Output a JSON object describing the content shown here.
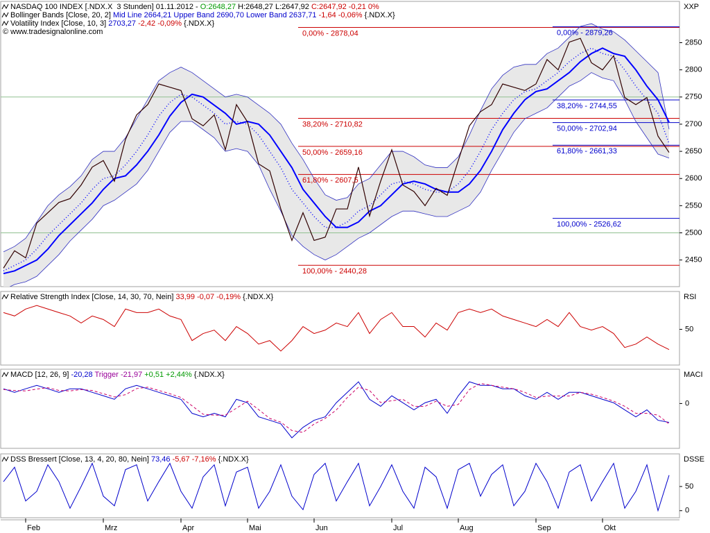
{
  "chart_data": [
    {
      "type": "bollinger",
      "header": [
        [
          {
            "text": "NASDAQ 100 INDEX [.NDX.X  3 Stunden] 01.11.2012 - ",
            "color": "#000000"
          },
          {
            "text": "O:2648,27",
            "color": "#009900"
          },
          {
            "text": " H:2648,27 L:2647,92 ",
            "color": "#000000"
          },
          {
            "text": "C:2647,92 -0,21 0%",
            "color": "#cc0000"
          }
        ],
        [
          {
            "text": "Bollinger Bands [Close, 20, 2] ",
            "color": "#000000"
          },
          {
            "text": "Mid Line 2664,21 Upper Band 2690,70 Lower Band 2637,71 ",
            "color": "#0000cc"
          },
          {
            "text": "-1,64 -0,06% ",
            "color": "#cc0000"
          },
          {
            "text": "{.NDX.X}",
            "color": "#000000"
          }
        ],
        [
          {
            "text": "Volatility Index [Close, 10, 3] ",
            "color": "#000000"
          },
          {
            "text": "2703,27 ",
            "color": "#0000cc"
          },
          {
            "text": "-2,42 -0,09% ",
            "color": "#cc0000"
          },
          {
            "text": "{.NDX.X}",
            "color": "#000000"
          }
        ]
      ],
      "copyright": "© www.tradesignalonline.com",
      "axis_label": "XXP",
      "ylim": [
        2401,
        2926
      ],
      "yticks": [
        2450,
        2500,
        2550,
        2600,
        2650,
        2700,
        2750,
        2800,
        2850
      ],
      "hlines": {
        "color": "#90c090",
        "values": [
          2500,
          2750
        ]
      },
      "band_fill": "#e8e8e8",
      "close": {
        "color": "#300000",
        "values": [
          2435,
          2467,
          2454,
          2518,
          2537,
          2556,
          2563,
          2588,
          2621,
          2633,
          2595,
          2672,
          2717,
          2736,
          2774,
          2768,
          2762,
          2710,
          2697,
          2717,
          2653,
          2736,
          2704,
          2627,
          2614,
          2544,
          2486,
          2537,
          2486,
          2492,
          2544,
          2544,
          2621,
          2531,
          2595,
          2653,
          2588,
          2576,
          2550,
          2582,
          2569,
          2633,
          2697,
          2723,
          2736,
          2774,
          2768,
          2762,
          2774,
          2819,
          2800,
          2851,
          2858,
          2813,
          2800,
          2826,
          2749,
          2736,
          2749,
          2678,
          2647.92
        ]
      },
      "mid": {
        "color": "#0000ff",
        "values": [
          2430,
          2440,
          2450,
          2470,
          2495,
          2515,
          2535,
          2555,
          2580,
          2600,
          2605,
          2625,
          2650,
          2680,
          2715,
          2740,
          2755,
          2750,
          2735,
          2720,
          2700,
          2705,
          2700,
          2680,
          2650,
          2620,
          2580,
          2555,
          2530,
          2510,
          2510,
          2520,
          2540,
          2550,
          2570,
          2590,
          2595,
          2590,
          2580,
          2575,
          2575,
          2590,
          2615,
          2650,
          2690,
          2720,
          2745,
          2760,
          2765,
          2780,
          2795,
          2815,
          2830,
          2840,
          2830,
          2825,
          2800,
          2770,
          2745,
          2720,
          2664.21
        ]
      },
      "upper": {
        "color": "#3030c0",
        "values": [
          2465,
          2475,
          2490,
          2520,
          2550,
          2570,
          2585,
          2605,
          2635,
          2650,
          2650,
          2675,
          2710,
          2745,
          2780,
          2795,
          2805,
          2795,
          2780,
          2765,
          2750,
          2755,
          2750,
          2735,
          2720,
          2700,
          2665,
          2635,
          2600,
          2570,
          2560,
          2565,
          2590,
          2600,
          2625,
          2650,
          2650,
          2640,
          2625,
          2620,
          2620,
          2640,
          2680,
          2725,
          2765,
          2790,
          2805,
          2810,
          2810,
          2830,
          2840,
          2860,
          2880,
          2885,
          2875,
          2870,
          2855,
          2835,
          2815,
          2795,
          2690.7
        ]
      },
      "lower": {
        "color": "#3030c0",
        "values": [
          2395,
          2405,
          2410,
          2420,
          2440,
          2460,
          2485,
          2505,
          2525,
          2550,
          2560,
          2575,
          2590,
          2615,
          2650,
          2685,
          2705,
          2705,
          2690,
          2675,
          2650,
          2655,
          2650,
          2625,
          2580,
          2540,
          2495,
          2475,
          2460,
          2450,
          2460,
          2475,
          2490,
          2500,
          2515,
          2530,
          2540,
          2540,
          2535,
          2530,
          2530,
          2540,
          2550,
          2575,
          2615,
          2650,
          2685,
          2710,
          2720,
          2730,
          2750,
          2770,
          2780,
          2795,
          2785,
          2780,
          2745,
          2705,
          2675,
          2645,
          2637.71
        ]
      },
      "volatility": {
        "color": "#0000ff",
        "values": [
          2425,
          2430,
          2440,
          2450,
          2470,
          2495,
          2515,
          2535,
          2555,
          2580,
          2600,
          2605,
          2625,
          2650,
          2680,
          2715,
          2740,
          2755,
          2750,
          2735,
          2720,
          2700,
          2705,
          2700,
          2680,
          2650,
          2620,
          2580,
          2555,
          2530,
          2510,
          2510,
          2520,
          2540,
          2550,
          2570,
          2590,
          2595,
          2590,
          2580,
          2575,
          2575,
          2590,
          2615,
          2650,
          2690,
          2720,
          2745,
          2760,
          2765,
          2780,
          2795,
          2815,
          2830,
          2840,
          2830,
          2825,
          2800,
          2770,
          2745,
          2703.27
        ]
      },
      "fib_sets": [
        {
          "color": "#cc0000",
          "levels": [
            {
              "label": "0,00% - 2878,04",
              "value": 2878.04
            },
            {
              "label": "38,20% - 2710,82",
              "value": 2710.82
            },
            {
              "label": "50,00% - 2659,16",
              "value": 2659.16
            },
            {
              "label": "61,80% - 2607,5",
              "value": 2607.5
            },
            {
              "label": "100,00% - 2440,28",
              "value": 2440.28
            }
          ]
        },
        {
          "color": "#0000cc",
          "levels": [
            {
              "label": "0,00% - 2879,26",
              "value": 2879.26
            },
            {
              "label": "38,20% - 2744,55",
              "value": 2744.55
            },
            {
              "label": "50,00% - 2702,94",
              "value": 2702.94
            },
            {
              "label": "61,80% - 2661,33",
              "value": 2661.33
            },
            {
              "label": "100,00% - 2526,62",
              "value": 2526.62
            }
          ]
        }
      ]
    },
    {
      "type": "line",
      "header": [
        [
          {
            "text": "Relative Strength Index [Close, 14, 30, 70, Nein] ",
            "color": "#000000"
          },
          {
            "text": "33,99 -0,07 -0,19% ",
            "color": "#cc0000"
          },
          {
            "text": "{.NDX.X}",
            "color": "#000000"
          }
        ]
      ],
      "axis_label": "RSI",
      "ylim": [
        21.7,
        80
      ],
      "yticks": [
        50
      ],
      "series": [
        {
          "color": "#cc0000",
          "values": [
            63.3,
            60.6,
            66.1,
            68.9,
            66.1,
            63.3,
            60.6,
            55.0,
            60.6,
            57.8,
            52.2,
            66.1,
            63.3,
            63.3,
            66.1,
            60.6,
            57.8,
            41.1,
            46.7,
            49.4,
            41.1,
            52.2,
            46.7,
            38.3,
            41.1,
            32.8,
            41.1,
            52.2,
            46.7,
            49.4,
            55.0,
            52.2,
            63.3,
            46.7,
            57.8,
            63.3,
            52.2,
            52.2,
            43.9,
            55.0,
            49.4,
            63.3,
            66.1,
            63.3,
            66.1,
            60.6,
            57.8,
            55.0,
            52.2,
            57.8,
            52.2,
            63.3,
            52.2,
            49.4,
            52.2,
            46.7,
            35.6,
            38.3,
            43.9,
            38.3,
            33.99
          ]
        }
      ]
    },
    {
      "type": "line",
      "header": [
        [
          {
            "text": "MACD [12, 26, 9] ",
            "color": "#000000"
          },
          {
            "text": "-20,28 ",
            "color": "#0000cc"
          },
          {
            "text": "Trigger -21,97 ",
            "color": "#990099"
          },
          {
            "text": "+0,51 +2,44% ",
            "color": "#009900"
          },
          {
            "text": "{.NDX.X}",
            "color": "#000000"
          }
        ]
      ],
      "axis_label": "MACI",
      "ylim": [
        -48.1,
        36.8
      ],
      "yticks": [
        0
      ],
      "series": [
        {
          "color": "#0000cc",
          "values": [
            15.8,
            12.0,
            15.8,
            19.5,
            15.8,
            12.0,
            15.8,
            15.8,
            12.0,
            8.3,
            4.5,
            15.8,
            19.5,
            15.8,
            12.0,
            8.3,
            4.5,
            -10.5,
            -14.3,
            -10.5,
            -14.3,
            4.5,
            0.8,
            -14.3,
            -18.0,
            -21.8,
            -36.8,
            -25.6,
            -18.0,
            -14.3,
            0.8,
            12.0,
            23.3,
            4.5,
            -3.0,
            8.3,
            0.8,
            -6.8,
            0.8,
            4.5,
            -10.5,
            8.3,
            23.3,
            19.5,
            19.5,
            15.8,
            15.8,
            8.3,
            4.5,
            12.0,
            4.5,
            12.0,
            12.0,
            8.3,
            4.5,
            0.8,
            -6.8,
            -14.3,
            -6.8,
            -18.0,
            -20.28
          ]
        },
        {
          "color": "#cc0066",
          "dashed": true,
          "values": [
            15.0,
            14.0,
            13.5,
            15.5,
            17.0,
            14.0,
            13.5,
            15.0,
            14.0,
            10.5,
            7.0,
            9.5,
            16.0,
            17.5,
            14.0,
            10.5,
            6.5,
            -2.5,
            -11.5,
            -12.5,
            -12.5,
            -5.0,
            2.5,
            -6.5,
            -16.0,
            -20.0,
            -29.0,
            -31.0,
            -22.0,
            -16.0,
            -7.0,
            6.5,
            17.5,
            14.0,
            1.0,
            3.0,
            4.5,
            -3.0,
            -3.0,
            2.5,
            -3.0,
            -1.0,
            15.0,
            21.5,
            19.5,
            17.5,
            15.8,
            12.0,
            6.5,
            8.0,
            8.0,
            8.0,
            12.0,
            10.0,
            6.5,
            2.5,
            -3.0,
            -10.5,
            -10.5,
            -12.5,
            -21.97
          ]
        }
      ]
    },
    {
      "type": "line",
      "header": [
        [
          {
            "text": "DSS Bressert [Close, 13, 4, 20, 80, Nein] ",
            "color": "#000000"
          },
          {
            "text": "73,46 ",
            "color": "#0000cc"
          },
          {
            "text": "-5,67 -7,16% ",
            "color": "#cc0000"
          },
          {
            "text": "{.NDX.X}",
            "color": "#000000"
          }
        ]
      ],
      "axis_label": "DSSE",
      "ylim": [
        -14.7,
        117.6
      ],
      "yticks": [
        0,
        50
      ],
      "series": [
        {
          "color": "#0000cc",
          "values": [
            60,
            90,
            20,
            40,
            95,
            60,
            5,
            50,
            98,
            30,
            10,
            85,
            95,
            20,
            60,
            98,
            40,
            5,
            70,
            95,
            10,
            80,
            90,
            5,
            40,
            95,
            30,
            2,
            75,
            98,
            20,
            60,
            98,
            10,
            50,
            95,
            40,
            5,
            90,
            70,
            5,
            85,
            98,
            30,
            75,
            95,
            10,
            40,
            98,
            60,
            5,
            80,
            95,
            20,
            60,
            98,
            5,
            40,
            95,
            0,
            73.46
          ]
        }
      ],
      "categories": [
        null,
        null,
        "Feb",
        null,
        null,
        null,
        null,
        null,
        null,
        "Mrz",
        null,
        null,
        null,
        null,
        null,
        null,
        "Apr",
        null,
        null,
        null,
        null,
        null,
        "Mai",
        null,
        null,
        null,
        null,
        null,
        "Jun",
        null,
        null,
        null,
        null,
        null,
        null,
        "Jul",
        null,
        null,
        null,
        null,
        null,
        "Aug",
        null,
        null,
        null,
        null,
        null,
        null,
        "Sep",
        null,
        null,
        null,
        null,
        null,
        "Okt",
        null,
        null,
        null,
        null,
        null,
        null
      ]
    }
  ]
}
